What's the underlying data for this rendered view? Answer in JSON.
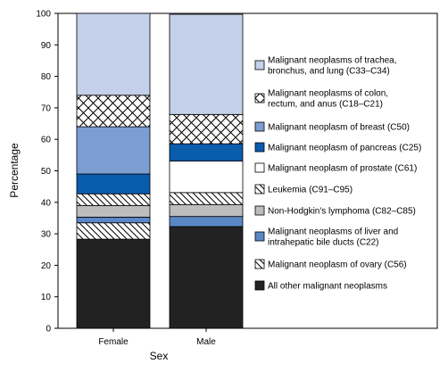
{
  "chart_data": {
    "type": "bar",
    "stacked": true,
    "percent_stacked": true,
    "title": "",
    "xlabel": "Sex",
    "ylabel": "Percentage",
    "ylim": [
      0,
      100
    ],
    "yticks": [
      0,
      10,
      20,
      30,
      40,
      50,
      60,
      70,
      80,
      90,
      100
    ],
    "grid": false,
    "legend_position": "right",
    "categories": [
      "Female",
      "Male"
    ],
    "series": [
      {
        "name": "All other malignant neoplasms",
        "values": [
          28.3,
          32.3
        ],
        "color": "#222222",
        "pattern": "solid"
      },
      {
        "name": "Malignant neoplasm of ovary (C56)",
        "values": [
          5.2,
          0
        ],
        "color": "#ffffff",
        "pattern": "hatch"
      },
      {
        "name": "Malignant neoplasms of liver and intrahepatic bile ducts (C22)",
        "values": [
          1.8,
          3.2
        ],
        "color": "#5b87c6",
        "pattern": "solid"
      },
      {
        "name": "Non-Hodgkin's lymphoma (C82–C85)",
        "values": [
          3.7,
          3.8
        ],
        "color": "#bdbdbd",
        "pattern": "solid"
      },
      {
        "name": "Leukemia (C91–C95)",
        "values": [
          3.7,
          3.8
        ],
        "color": "#ffffff",
        "pattern": "hatch"
      },
      {
        "name": "Malignant neoplasm of prostate (C61)",
        "values": [
          0,
          10.0
        ],
        "color": "#ffffff",
        "pattern": "solid"
      },
      {
        "name": "Malignant neoplasm of pancreas (C25)",
        "values": [
          6.3,
          5.5
        ],
        "color": "#0a5cad",
        "pattern": "solid"
      },
      {
        "name": "Malignant neoplasm of breast (C50)",
        "values": [
          15.0,
          0
        ],
        "color": "#7b9dd2",
        "pattern": "solid"
      },
      {
        "name": "Malignant neoplasms of colon, rectum, and anus (C18–C21)",
        "values": [
          10.0,
          9.3
        ],
        "color": "#ffffff",
        "pattern": "crosshatch"
      },
      {
        "name": "Malignant neoplasms of trachea, bronchus, and lung (C33–C34)",
        "values": [
          26.0,
          31.8
        ],
        "color": "#c5d1ea",
        "pattern": "solid"
      }
    ],
    "legend_order_top_to_bottom": [
      "Malignant neoplasms of trachea, bronchus, and lung (C33–C34)",
      "Malignant neoplasms of colon, rectum, and anus (C18–C21)",
      "Malignant neoplasm of breast (C50)",
      "Malignant neoplasm of pancreas (C25)",
      "Malignant neoplasm of prostate (C61)",
      "Leukemia (C91–C95)",
      "Non-Hodgkin's lymphoma (C82–C85)",
      "Malignant neoplasms of liver and intrahepatic bile ducts (C22)",
      "Malignant neoplasm of ovary (C56)",
      "All other malignant neoplasms"
    ],
    "legend_lines": [
      [
        "Malignant neoplasms of trachea,",
        "bronchus, and lung (C33–C34)"
      ],
      [
        "Malignant neoplasms of colon,",
        "rectum, and anus (C18–C21)"
      ],
      [
        "Malignant neoplasm of breast (C50)"
      ],
      [
        "Malignant neoplasm of pancreas (C25)"
      ],
      [
        "Malignant neoplasm of prostate (C61)"
      ],
      [
        "Leukemia (C91–C95)"
      ],
      [
        "Non-Hodgkin's lymphoma (C82–C85)"
      ],
      [
        "Malignant neoplasms of liver and",
        "intrahepatic bile ducts (C22)"
      ],
      [
        "Malignant neoplasm of ovary (C56)"
      ],
      [
        "All other malignant neoplasms"
      ]
    ]
  }
}
